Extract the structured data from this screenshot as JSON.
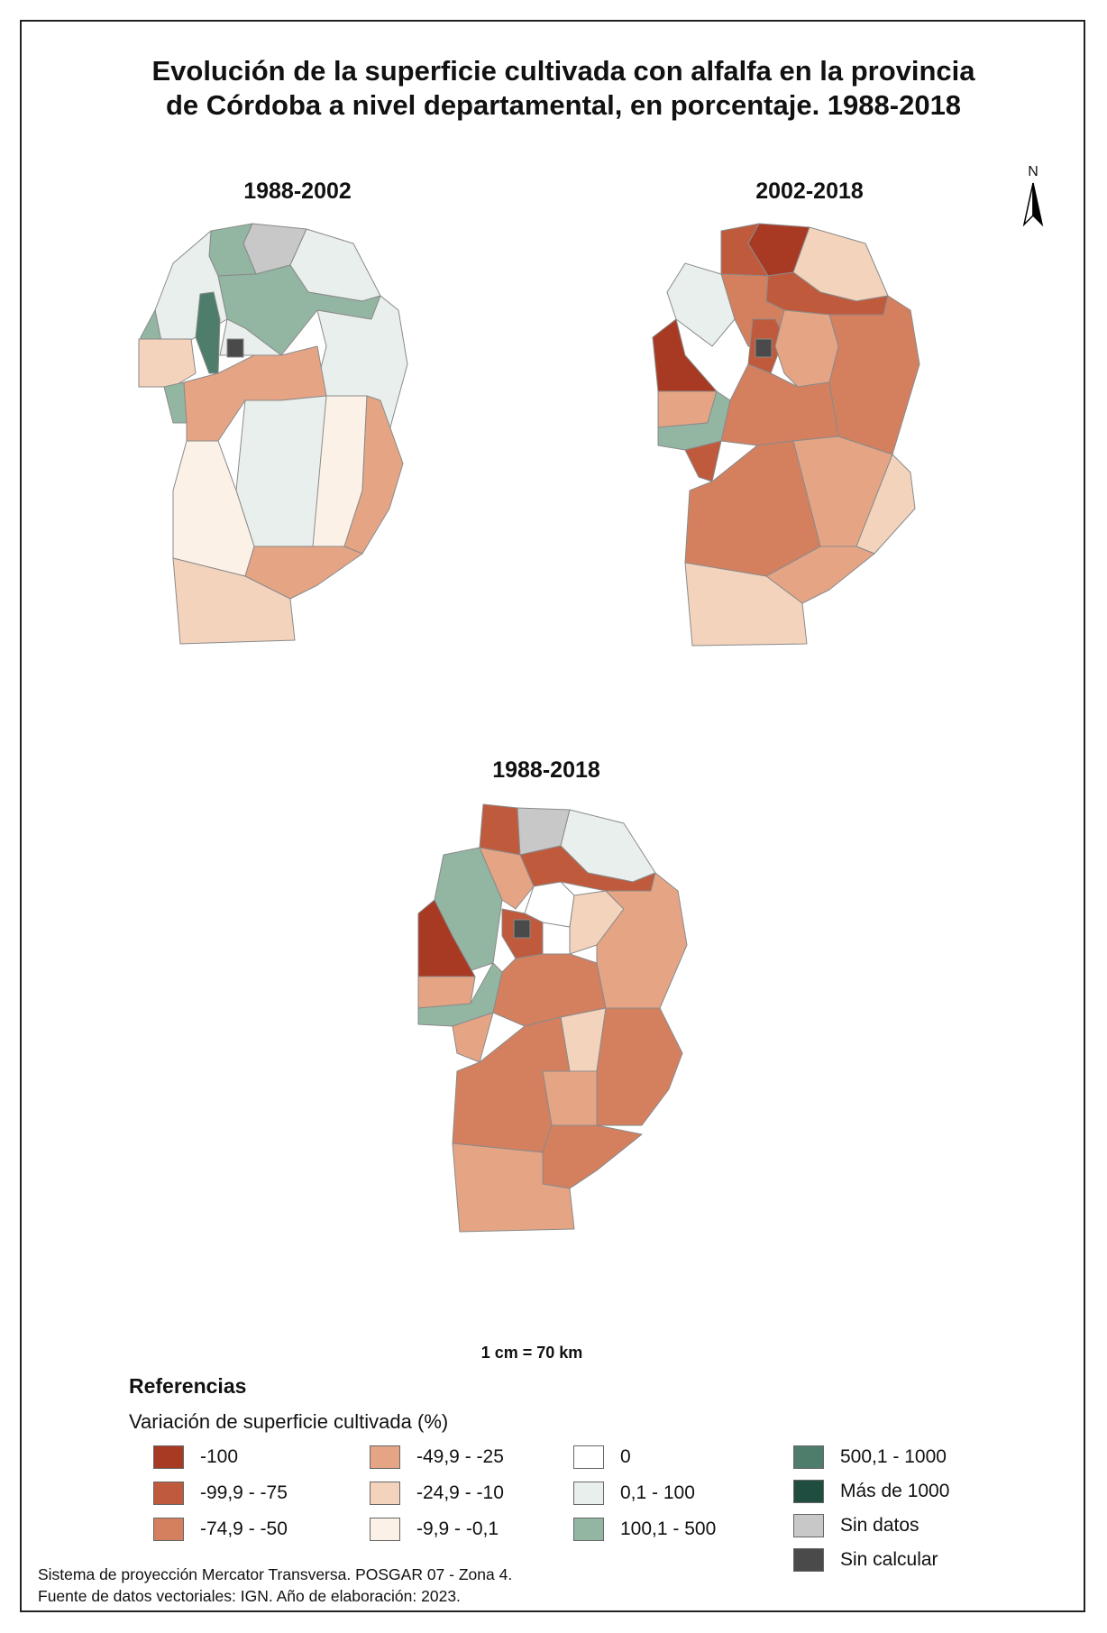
{
  "title": {
    "line1": "Evolución de la superficie cultivada con alfalfa en la provincia",
    "line2": "de Córdoba a nivel departamental, en porcentaje. 1988-2018"
  },
  "maps": [
    {
      "label": "1988-2002"
    },
    {
      "label": "2002-2018"
    },
    {
      "label": "1988-2018"
    }
  ],
  "north": "N",
  "scale": "1 cm = 70 km",
  "legend": {
    "title": "Referencias",
    "subtitle": "Variación de superficie cultivada (%)",
    "items": [
      {
        "label": "-100",
        "color": "#a83a24"
      },
      {
        "label": "-99,9 - -75",
        "color": "#c05a3c"
      },
      {
        "label": "-74,9 - -50",
        "color": "#d4805f"
      },
      {
        "label": "-49,9 - -25",
        "color": "#e5a585"
      },
      {
        "label": "-24,9 - -10",
        "color": "#f3d3bc"
      },
      {
        "label": "-9,9 - -0,1",
        "color": "#fbf1e6"
      },
      {
        "label": "0",
        "color": "#ffffff"
      },
      {
        "label": "0,1 - 100",
        "color": "#e9efec"
      },
      {
        "label": "100,1 - 500",
        "color": "#93b6a2"
      },
      {
        "label": "500,1 - 1000",
        "color": "#4e7e6b"
      },
      {
        "label": "Más de 1000",
        "color": "#1f4d3f"
      },
      {
        "label": "Sin datos",
        "color": "#c8c8c8"
      },
      {
        "label": "Sin calcular",
        "color": "#4a4a4a"
      }
    ]
  },
  "footer": {
    "line1": "Sistema de proyección Mercator Transversa. POSGAR 07 - Zona 4.",
    "line2": "Fuente de datos vectoriales: IGN. Año de elaboración: 2023."
  }
}
